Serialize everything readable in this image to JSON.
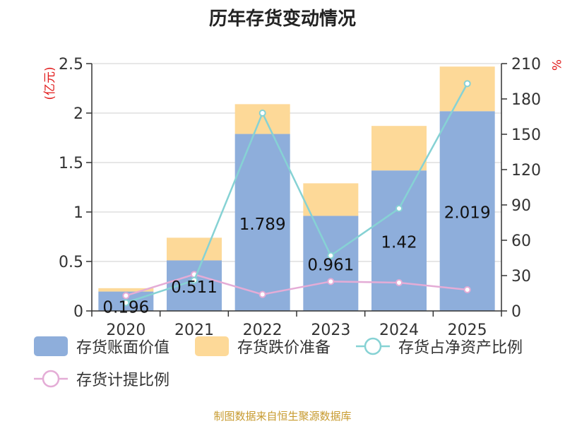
{
  "title": "历年存货变动情况",
  "source": "制图数据来自恒生聚源数据库",
  "colors": {
    "book_value": "#8eaedb",
    "impairment": "#fdd998",
    "ratio_net_assets": "#86d2d4",
    "provision_ratio": "#e4acd6",
    "axis_unit": "#e11b1b"
  },
  "chart_data": {
    "type": "bar",
    "categories": [
      "2020",
      "2021",
      "2022",
      "2023",
      "2024",
      "2025"
    ],
    "left_axis": {
      "unit": "(亿元)",
      "ylim": [
        0,
        2.5
      ],
      "ticks": [
        "0",
        "0.5",
        "1",
        "1.5",
        "2",
        "2.5"
      ]
    },
    "right_axis": {
      "unit": "%",
      "ylim": [
        0,
        210
      ],
      "ticks": [
        "0",
        "30",
        "60",
        "90",
        "120",
        "150",
        "180",
        "210"
      ]
    },
    "grid": true,
    "legend_position": "bottom",
    "series": [
      {
        "name": "存货账面价值",
        "type": "bar",
        "axis": "left",
        "stack": "inv",
        "values": [
          0.196,
          0.511,
          1.789,
          0.961,
          1.42,
          2.019
        ],
        "labels": [
          "0.196",
          "0.511",
          "1.789",
          "0.961",
          "1.42",
          "2.019"
        ]
      },
      {
        "name": "存货跌价准备",
        "type": "bar",
        "axis": "left",
        "stack": "inv",
        "values": [
          0.034,
          0.229,
          0.301,
          0.329,
          0.45,
          0.451
        ]
      },
      {
        "name": "存货占净资产比例",
        "type": "line",
        "axis": "right",
        "values": [
          7,
          26,
          168,
          47,
          87,
          193
        ]
      },
      {
        "name": "存货计提比例",
        "type": "line",
        "axis": "right",
        "values": [
          13,
          31,
          14,
          25,
          24,
          18
        ]
      }
    ]
  }
}
